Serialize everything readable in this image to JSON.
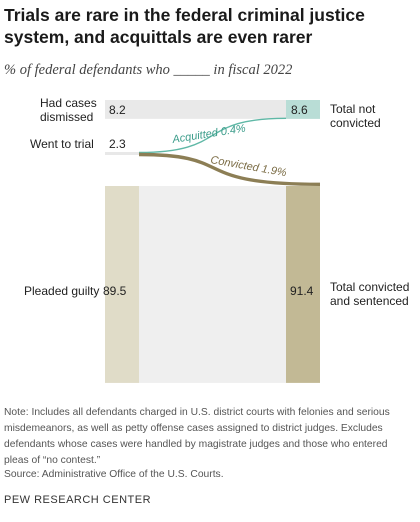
{
  "title": "Trials are rare in the federal criminal justice system, and acquittals are even rarer",
  "subtitle": "% of federal defendants who _____ in fiscal 2022",
  "chart_data": {
    "type": "sankey",
    "left": [
      {
        "label": "Had cases dismissed",
        "value": 8.2,
        "value_label": "8.2"
      },
      {
        "label": "Went to trial",
        "value": 2.3,
        "value_label": "2.3"
      },
      {
        "label": "Pleaded guilty",
        "value": 89.5,
        "value_label": "89.5"
      }
    ],
    "right": [
      {
        "label": "Total not convicted",
        "value": 8.6,
        "value_label": "8.6"
      },
      {
        "label": "Total convicted and sentenced",
        "value": 91.4,
        "value_label": "91.4"
      }
    ],
    "flows": [
      {
        "from": "Had cases dismissed",
        "to": "Total not convicted",
        "value": 8.2
      },
      {
        "from": "Went to trial",
        "to": "Total not convicted",
        "value": 0.4,
        "label": "Acquitted 0.4%"
      },
      {
        "from": "Went to trial",
        "to": "Total convicted and sentenced",
        "value": 1.9,
        "label": "Convicted 1.9%"
      },
      {
        "from": "Pleaded guilty",
        "to": "Total convicted and sentenced",
        "value": 89.5
      }
    ],
    "colors": {
      "dismissed_bar": "#e9e9e9",
      "not_convicted_bar": "#b9ddd6",
      "acquitted_flow": "#5fb8a6",
      "acquitted_text": "#3b9c8a",
      "convicted_flow": "#8c7e55",
      "convicted_text": "#7b6c45",
      "pleaded_bar": "#e0dcc8",
      "convicted_bar": "#c2b995",
      "flow_gray": "#efefef",
      "trial_bar": "#e8e8e8"
    }
  },
  "note": "Note: Includes all defendants charged in U.S. district courts with felonies and serious misdemeanors, as well as petty offense cases assigned to district judges. Excludes defendants whose cases were handled by magistrate judges and those who entered pleas of “no contest.”",
  "source": "Source: Administrative Office of the U.S. Courts.",
  "brand": "PEW RESEARCH CENTER"
}
